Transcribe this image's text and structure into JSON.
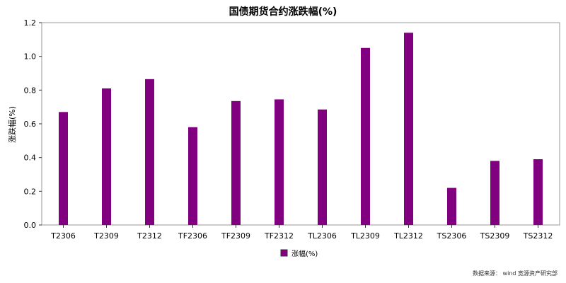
{
  "chart_data": {
    "type": "bar",
    "title": "国债期货合约涨跌幅(%)",
    "xlabel": "",
    "ylabel": "涨跌幅(%)",
    "categories": [
      "T2306",
      "T2309",
      "T2312",
      "TF2306",
      "TF2309",
      "TF2312",
      "TL2306",
      "TL2309",
      "TL2312",
      "TS2306",
      "TS2309",
      "TS2312"
    ],
    "series": [
      {
        "name": "涨幅(%)",
        "values": [
          0.67,
          0.81,
          0.865,
          0.58,
          0.735,
          0.745,
          0.685,
          1.05,
          1.14,
          0.22,
          0.38,
          0.39
        ]
      }
    ],
    "ylim": [
      0,
      1.2
    ],
    "yticks": [
      "0.0",
      "0.2",
      "0.4",
      "0.6",
      "0.8",
      "1.0",
      "1.2"
    ],
    "grid": false,
    "legend": "bottom",
    "bar_color": "#800080"
  },
  "source_note": "数据来源：   wind 宽源资产研究部"
}
